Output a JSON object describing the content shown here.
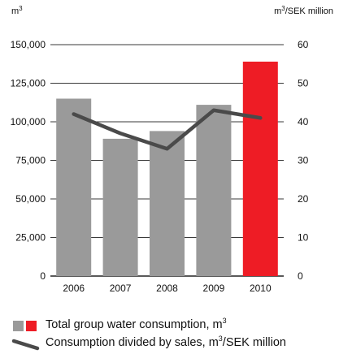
{
  "chart_data": {
    "type": "bar",
    "categories": [
      "2006",
      "2007",
      "2008",
      "2009",
      "2010"
    ],
    "series": [
      {
        "type": "bar",
        "axis": "left",
        "values": [
          115000,
          89000,
          94000,
          111000,
          139000
        ],
        "colors": [
          "#9a9a9a",
          "#9a9a9a",
          "#9a9a9a",
          "#9a9a9a",
          "#ee1c25"
        ]
      },
      {
        "type": "line",
        "axis": "right",
        "values": [
          42,
          37,
          33,
          43,
          41
        ],
        "color": "#4a4a4a"
      }
    ],
    "y_left": {
      "unit": "m3",
      "ylim": [
        0,
        150000
      ],
      "ticks": [
        "0",
        "25,000",
        "50,000",
        "75,000",
        "100,000",
        "125,000",
        "150,000"
      ]
    },
    "y_right": {
      "unit": "m3/SEK million",
      "ylim": [
        0,
        60
      ],
      "ticks": [
        "0",
        "10",
        "20",
        "30",
        "40",
        "50",
        "60"
      ]
    },
    "grid": true
  },
  "legend": {
    "bars_text": "Total group water consumption, m",
    "bars_sup": "3",
    "line_text": "Consumption divided by sales, m",
    "line_sup": "3",
    "line_suffix": "/SEK million",
    "swatch_gray": "#9a9a9a",
    "swatch_red": "#ee1c25",
    "line_color": "#4a4a4a"
  }
}
